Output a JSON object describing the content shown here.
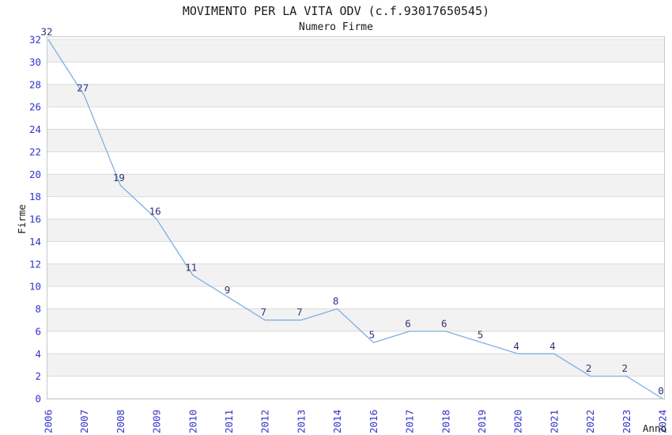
{
  "chart": {
    "title": "MOVIMENTO PER LA VITA ODV (c.f.93017650545)",
    "subtitle": "Numero Firme"
  },
  "chart_data": {
    "type": "line",
    "title": "MOVIMENTO PER LA VITA ODV (c.f.93017650545)",
    "subtitle": "Numero Firme",
    "xlabel": "Anno",
    "ylabel": "Firme",
    "categories": [
      "2006",
      "2007",
      "2008",
      "2009",
      "2010",
      "2011",
      "2012",
      "2013",
      "2014",
      "2016",
      "2017",
      "2018",
      "2019",
      "2020",
      "2021",
      "2022",
      "2023",
      "2024"
    ],
    "values": [
      32,
      27,
      19,
      16,
      11,
      9,
      7,
      7,
      8,
      5,
      6,
      6,
      5,
      4,
      4,
      2,
      2,
      0
    ],
    "point_labels": [
      "32",
      "27",
      "19",
      "16",
      "11",
      "9",
      "7",
      "7",
      "8",
      "5",
      "6",
      "6",
      "5",
      "4",
      "4",
      "2",
      "2",
      "0"
    ],
    "ylim": [
      0,
      32
    ],
    "ytick_step": 2,
    "grid": true,
    "alternating_bands": true,
    "legend": "none",
    "colors": {
      "line": "#7fb0e0",
      "tick_label": "#3232cd",
      "point_label": "#333377",
      "axis_label": "#1a1a1a",
      "title": "#1a1a1a",
      "band": "#f2f2f2",
      "band_alt": "#ffffff",
      "grid": "#dadada",
      "border": "#c8c8c8",
      "background": "#ffffff"
    }
  }
}
